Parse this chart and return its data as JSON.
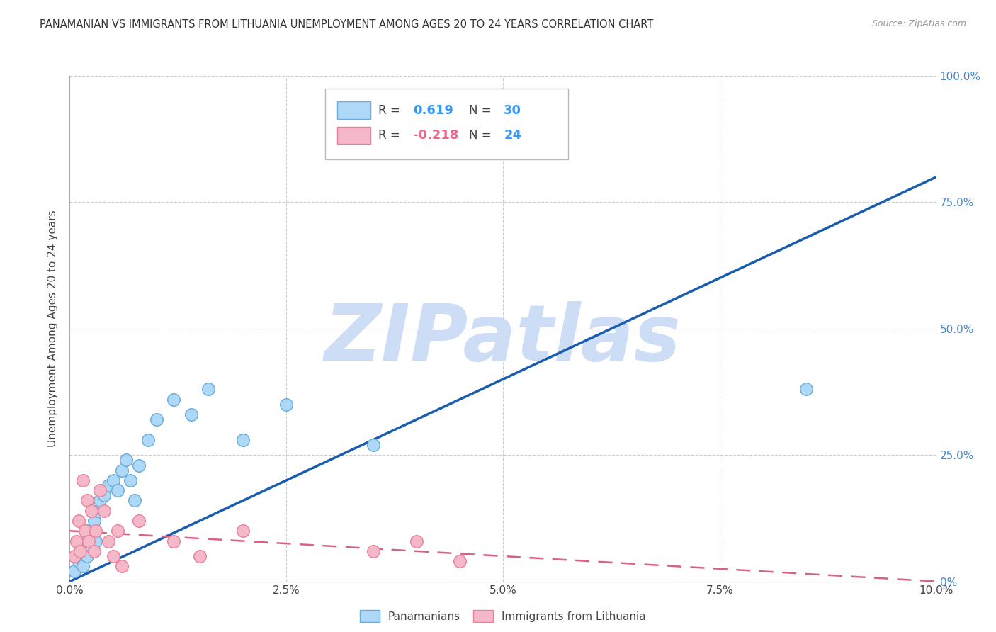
{
  "title": "PANAMANIAN VS IMMIGRANTS FROM LITHUANIA UNEMPLOYMENT AMONG AGES 20 TO 24 YEARS CORRELATION CHART",
  "source": "Source: ZipAtlas.com",
  "xlabel_ticks": [
    "0.0%",
    "",
    "",
    "",
    "",
    "2.5%",
    "",
    "",
    "",
    "",
    "5.0%",
    "",
    "",
    "",
    "",
    "7.5%",
    "",
    "",
    "",
    "",
    "10.0%"
  ],
  "xlabel_vals": [
    0.0,
    0.5,
    1.0,
    1.5,
    2.0,
    2.5,
    3.0,
    3.5,
    4.0,
    4.5,
    5.0,
    5.5,
    6.0,
    6.5,
    7.0,
    7.5,
    8.0,
    8.5,
    9.0,
    9.5,
    10.0
  ],
  "xlabel_show": [
    "0.0%",
    "2.5%",
    "5.0%",
    "7.5%",
    "10.0%"
  ],
  "xlabel_show_vals": [
    0.0,
    2.5,
    5.0,
    7.5,
    10.0
  ],
  "ylabel_ticks": [
    "100.0%",
    "75.0%",
    "50.0%",
    "25.0%",
    "0%"
  ],
  "ylabel_vals": [
    100,
    75,
    50,
    25,
    0
  ],
  "ylabel_label": "Unemployment Among Ages 20 to 24 years",
  "blue_color": "#add8f7",
  "blue_edge": "#6aaad4",
  "pink_color": "#f5b8c8",
  "pink_edge": "#e8809a",
  "trend_blue": "#1a5cb0",
  "trend_pink": "#d96080",
  "watermark": "ZIPatlas",
  "watermark_color": "#ccddf5",
  "blue_x": [
    0.05,
    0.1,
    0.12,
    0.15,
    0.18,
    0.2,
    0.22,
    0.25,
    0.28,
    0.3,
    0.32,
    0.35,
    0.4,
    0.45,
    0.5,
    0.55,
    0.6,
    0.65,
    0.7,
    0.75,
    0.8,
    0.9,
    1.0,
    1.2,
    1.4,
    1.6,
    2.0,
    2.5,
    3.5,
    8.5
  ],
  "blue_y": [
    2,
    4,
    6,
    3,
    8,
    5,
    10,
    7,
    12,
    8,
    14,
    16,
    17,
    19,
    20,
    18,
    22,
    24,
    20,
    16,
    23,
    28,
    32,
    36,
    33,
    38,
    28,
    35,
    27,
    38
  ],
  "pink_x": [
    0.05,
    0.08,
    0.1,
    0.12,
    0.15,
    0.18,
    0.2,
    0.22,
    0.25,
    0.28,
    0.3,
    0.35,
    0.4,
    0.45,
    0.5,
    0.55,
    0.6,
    0.8,
    1.2,
    1.5,
    2.0,
    3.5,
    4.0,
    4.5
  ],
  "pink_y": [
    5,
    8,
    12,
    6,
    20,
    10,
    16,
    8,
    14,
    6,
    10,
    18,
    14,
    8,
    5,
    10,
    3,
    12,
    8,
    5,
    10,
    6,
    8,
    4
  ],
  "xlim": [
    0,
    10
  ],
  "ylim": [
    0,
    100
  ],
  "blue_trend_x0": 0.0,
  "blue_trend_y0": 0.0,
  "blue_trend_x1": 10.0,
  "blue_trend_y1": 80.0,
  "pink_trend_x0": 0.0,
  "pink_trend_y0": 10.0,
  "pink_trend_x1": 10.0,
  "pink_trend_y1": 0.0
}
